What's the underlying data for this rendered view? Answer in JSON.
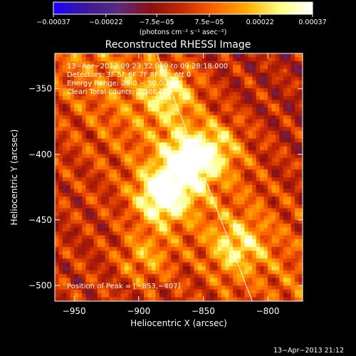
{
  "chart_data": {
    "type": "heatmap",
    "title": "Reconstructed RHESSI Image",
    "xlabel": "Heliocentric X (arcsec)",
    "ylabel": "Heliocentric Y (arcsec)",
    "xlim": [
      -965,
      -773
    ],
    "ylim": [
      -512,
      -323
    ],
    "x_ticks": [
      -950,
      -900,
      -850,
      -800
    ],
    "x_tick_labels": [
      "−950",
      "−900",
      "−850",
      "−800"
    ],
    "y_ticks": [
      -350,
      -400,
      -450,
      -500
    ],
    "y_tick_labels": [
      "−350",
      "−400",
      "−450",
      "−500"
    ],
    "colorbar": {
      "range": [
        -0.00037,
        0.00037
      ],
      "colors": [
        "#1e00ff",
        "#3a1a9a",
        "#5b2a80",
        "#8a1010",
        "#c62a00",
        "#ff6600",
        "#ffb000",
        "#ffff80",
        "#ffffff"
      ],
      "ticks": [
        -0.00037,
        -0.00022,
        -7.5e-05,
        7.5e-05,
        0.00022,
        0.00037
      ],
      "tick_labels": [
        "−0.00037",
        "−0.00022",
        "−7.5e−05",
        "7.5e−05",
        "0.00022",
        "0.00037"
      ],
      "unit_label": "(photons cm⁻² s⁻¹ asec⁻²)"
    },
    "limb_line": [
      [
        -888,
        -318
      ],
      [
        -812,
        -512
      ]
    ],
    "sources": [
      {
        "x": -882,
        "y": -432,
        "peak": 0.00037
      },
      {
        "x": -860,
        "y": -405,
        "peak": 0.00036
      },
      {
        "x": -875,
        "y": -352,
        "peak": 0.00022
      },
      {
        "x": -838,
        "y": -393,
        "peak": 0.00015
      },
      {
        "x": -823,
        "y": -470,
        "peak": 0.0002
      },
      {
        "x": -895,
        "y": -478,
        "peak": 0.00015
      }
    ],
    "annotations": [
      "13−Apr−2013 09:23:32.000 to 09:28:18.000",
      "Detectors: 3F 5F 6F 7F 8F 9F, Att 0",
      "Energy Range: 25.0 − 50.0 keV",
      "Clean     Total counts: 7.50E+03"
    ],
    "peak_label": "Position of Peak = [−853,−407]",
    "footer_timestamp": "13−Apr−2013 21:12"
  }
}
